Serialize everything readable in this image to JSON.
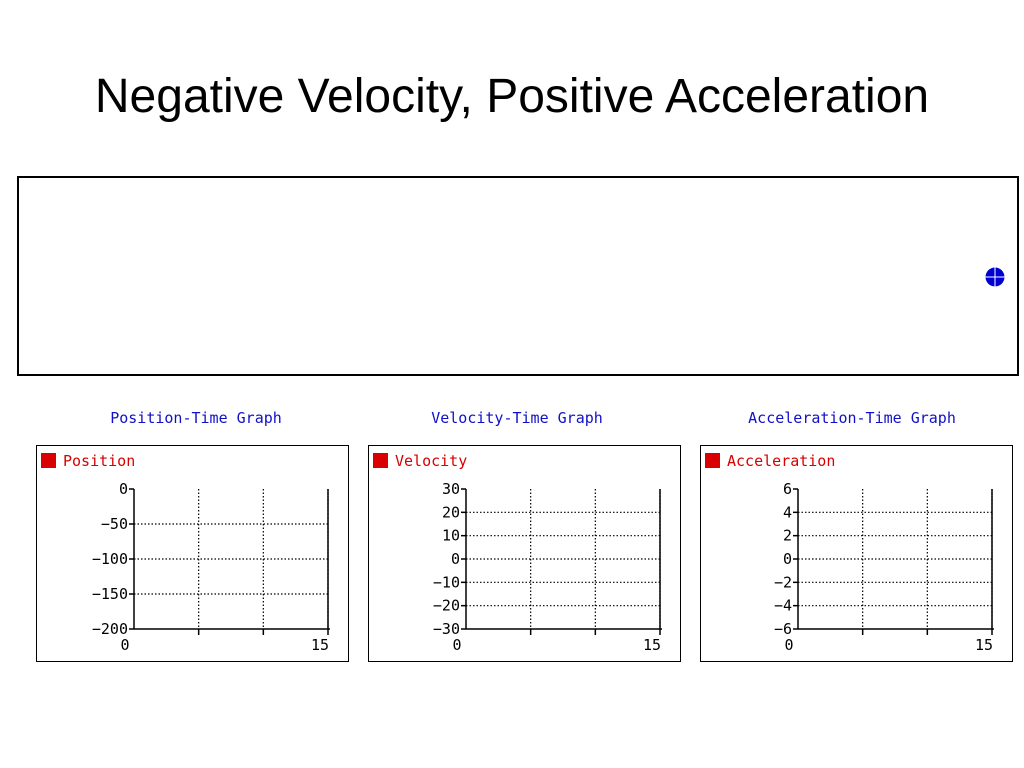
{
  "slide": {
    "title": "Negative Velocity, Positive Acceleration"
  },
  "colors": {
    "graph_title": "#1010c8",
    "legend": "#d80000",
    "ball": "#0000d0",
    "axis": "#000000"
  },
  "chart_data": [
    {
      "type": "line",
      "title": "Position-Time Graph",
      "legend": [
        "Position"
      ],
      "xlim": [
        0,
        15
      ],
      "ylim": [
        -200,
        0
      ],
      "x_ticks": [
        0,
        15
      ],
      "y_ticks": [
        0,
        -50,
        -100,
        -150,
        -200
      ],
      "grid": true,
      "legend_position": "top-left",
      "series": []
    },
    {
      "type": "line",
      "title": "Velocity-Time Graph",
      "legend": [
        "Velocity"
      ],
      "xlim": [
        0,
        15
      ],
      "ylim": [
        -30,
        30
      ],
      "x_ticks": [
        0,
        15
      ],
      "y_ticks": [
        30,
        20,
        10,
        0,
        -10,
        -20,
        -30
      ],
      "grid": true,
      "legend_position": "top-left",
      "series": []
    },
    {
      "type": "line",
      "title": "Acceleration-Time Graph",
      "legend": [
        "Acceleration"
      ],
      "xlim": [
        0,
        15
      ],
      "ylim": [
        -6,
        6
      ],
      "x_ticks": [
        0,
        15
      ],
      "y_ticks": [
        6,
        4,
        2,
        0,
        -2,
        -4,
        -6
      ],
      "grid": true,
      "legend_position": "top-left",
      "series": []
    }
  ]
}
